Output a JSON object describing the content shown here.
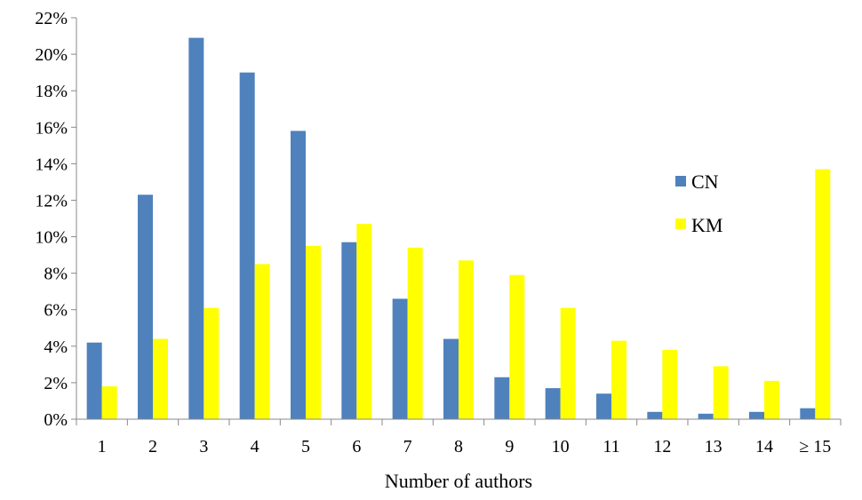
{
  "chart_data": {
    "type": "bar",
    "xlabel": "Number of authors",
    "ylabel": "",
    "ylim": [
      0,
      22
    ],
    "yticks": [
      0,
      2,
      4,
      6,
      8,
      10,
      12,
      14,
      16,
      18,
      20,
      22
    ],
    "ytick_labels": [
      "0%",
      "2%",
      "4%",
      "6%",
      "8%",
      "10%",
      "12%",
      "14%",
      "16%",
      "18%",
      "20%",
      "22%"
    ],
    "categories": [
      "1",
      "2",
      "3",
      "4",
      "5",
      "6",
      "7",
      "8",
      "9",
      "10",
      "11",
      "12",
      "13",
      "14",
      "≥ 15"
    ],
    "series": [
      {
        "name": "CN",
        "color": "#4f81bd",
        "values": [
          4.2,
          12.3,
          20.9,
          19.0,
          15.8,
          9.7,
          6.6,
          4.4,
          2.3,
          1.7,
          1.4,
          0.4,
          0.3,
          0.4,
          0.6
        ]
      },
      {
        "name": "KM",
        "color": "#ffff00",
        "values": [
          1.8,
          4.4,
          6.1,
          8.5,
          9.5,
          10.7,
          9.4,
          8.7,
          7.9,
          6.1,
          4.3,
          3.8,
          2.9,
          2.1,
          13.7
        ]
      }
    ],
    "grid": false,
    "legend_position": "right"
  }
}
